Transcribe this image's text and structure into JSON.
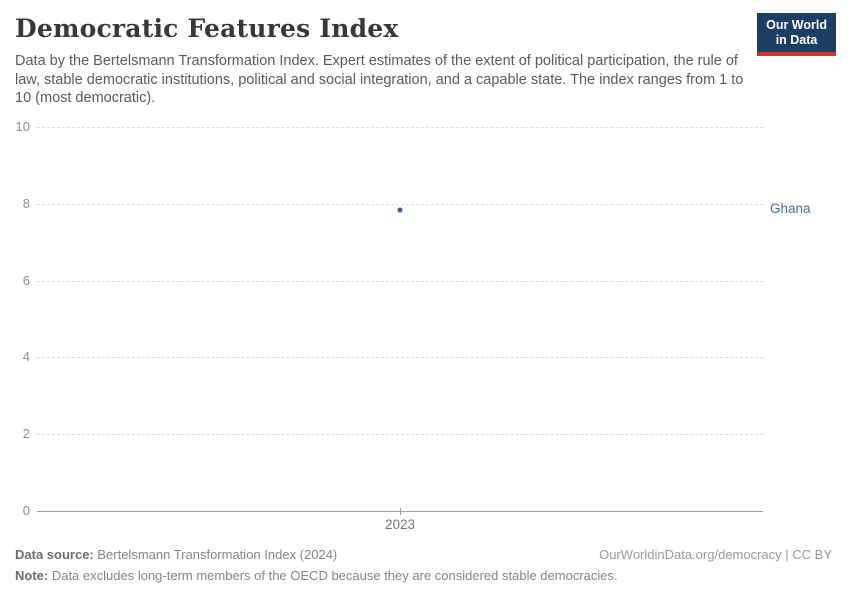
{
  "header": {
    "title": "Democratic Features Index",
    "subtitle": "Data by the Bertelsmann Transformation Index. Expert estimates of the extent of political participation, the rule of law, stable democratic institutions, political and social integration, and a capable state. The index ranges from 1 to 10 (most democratic).",
    "logo": {
      "line1": "Our World",
      "line2": "in Data",
      "bg_color": "#1d3d63",
      "accent_color": "#d0342c"
    }
  },
  "chart_data": {
    "type": "scatter",
    "title": "Democratic Features Index",
    "xlabel": "",
    "ylabel": "",
    "ylim": [
      0,
      10
    ],
    "yticks": [
      0,
      2,
      4,
      6,
      8,
      10
    ],
    "xticks": [
      "2023"
    ],
    "grid": true,
    "legend_position": "right-of-point",
    "series": [
      {
        "name": "Ghana",
        "color": "#3e5c8f",
        "label_color": "#4c6a9c",
        "points": [
          {
            "x": "2023",
            "y": 7.85
          }
        ]
      }
    ]
  },
  "footer": {
    "data_source_label": "Data source:",
    "data_source_value": " Bertelsmann Transformation Index (2024)",
    "credit": "OurWorldinData.org/democracy | CC BY",
    "note_label": "Note:",
    "note_value": " Data excludes long-term members of the OECD because they are considered stable democracies."
  }
}
